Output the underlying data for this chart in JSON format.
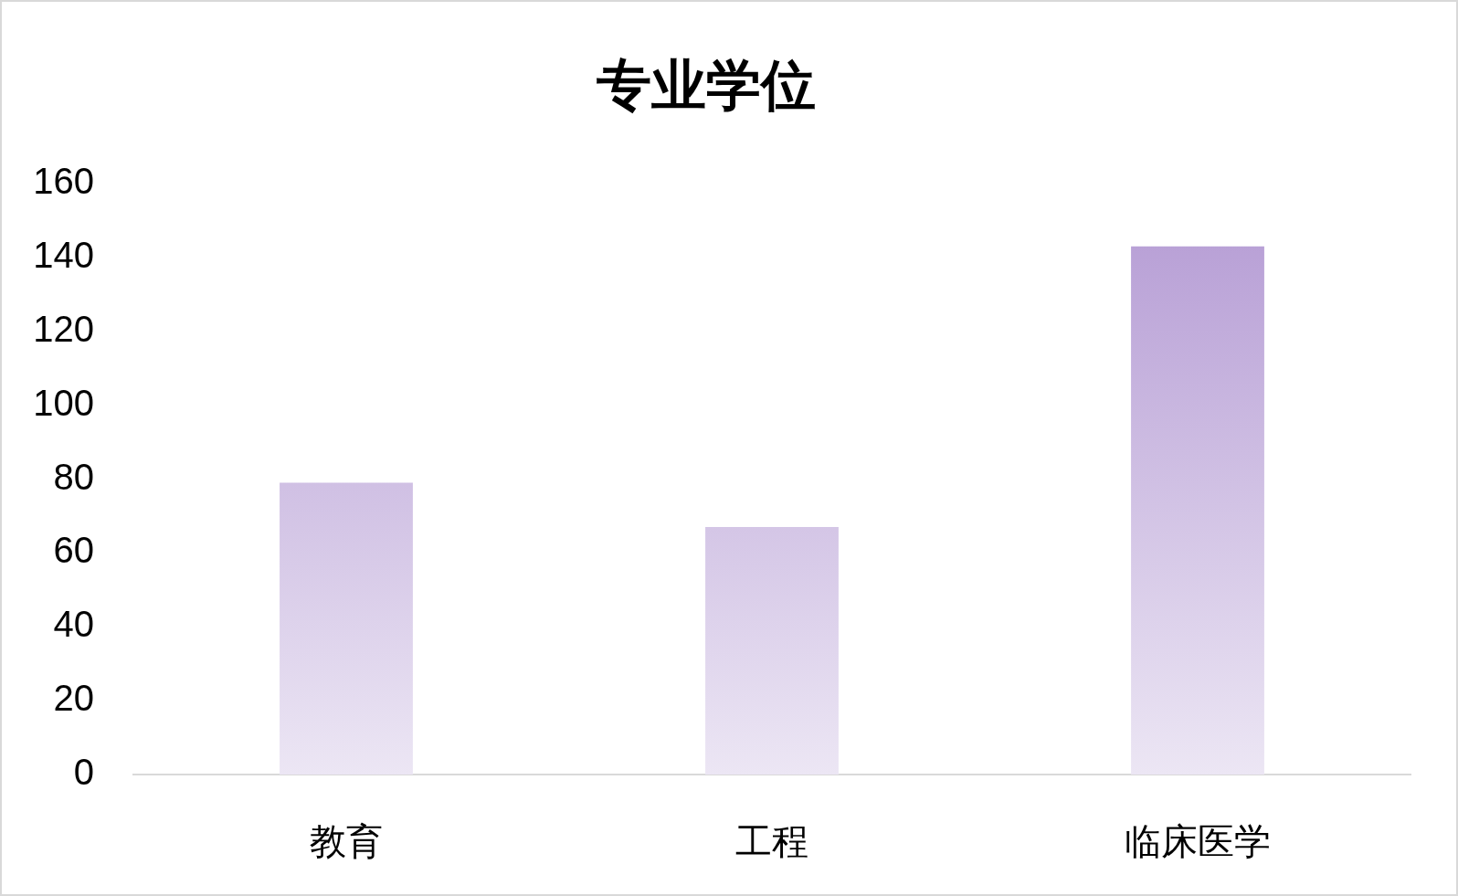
{
  "chart_data": {
    "type": "bar",
    "title": "专业学位",
    "categories": [
      "教育",
      "工程",
      "临床医学"
    ],
    "values": [
      79,
      67,
      143
    ],
    "color": "#b399d3",
    "ylim": [
      0,
      160
    ],
    "yticks": [
      0,
      20,
      40,
      60,
      80,
      100,
      120,
      140,
      160
    ]
  }
}
